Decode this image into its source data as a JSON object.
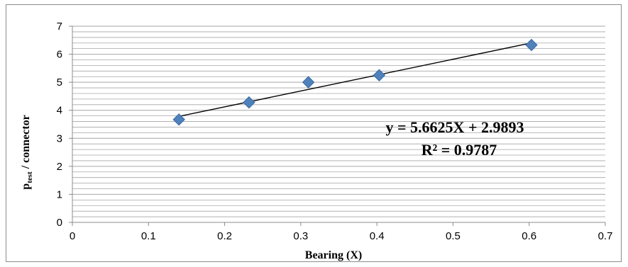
{
  "chart_data": {
    "type": "scatter",
    "xlabel": "Bearing (X)",
    "ylabel_main": "p",
    "ylabel_sub": "test",
    "ylabel_rest": " / connector",
    "xlim": [
      0,
      0.7
    ],
    "ylim": [
      0,
      7
    ],
    "x_ticks": [
      "0",
      "0.1",
      "0.2",
      "0.3",
      "0.4",
      "0.5",
      "0.6",
      "0.7"
    ],
    "y_ticks": [
      "0",
      "1",
      "2",
      "3",
      "4",
      "5",
      "6",
      "7"
    ],
    "grid": true,
    "points": [
      {
        "x": 0.14,
        "y": 3.67
      },
      {
        "x": 0.232,
        "y": 4.28
      },
      {
        "x": 0.31,
        "y": 5.0
      },
      {
        "x": 0.403,
        "y": 5.25
      },
      {
        "x": 0.603,
        "y": 6.33
      }
    ],
    "trendline": {
      "slope": 5.6625,
      "intercept": 2.9893,
      "x_range": [
        0.14,
        0.603
      ]
    },
    "equation_label": "y = 5.6625X + 2.9893",
    "r2_label": "R² = 0.9787",
    "marker_color": "#4f81bd",
    "marker_edge": "#3a6aa3",
    "line_color": "#000000",
    "grid_color": "#a6a6a6"
  }
}
